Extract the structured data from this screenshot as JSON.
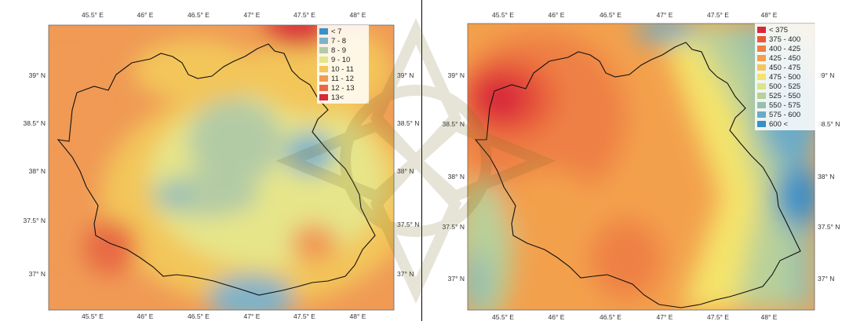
{
  "maps": {
    "left": {
      "legend": [
        {
          "label": "< 7",
          "color": "#3a8fc8"
        },
        {
          "label": "7 - 8",
          "color": "#7fb3c8"
        },
        {
          "label": "8 - 9",
          "color": "#b3cba5"
        },
        {
          "label": "9 - 10",
          "color": "#e6e58a"
        },
        {
          "label": "10 - 11",
          "color": "#f3c65a"
        },
        {
          "label": "11 - 12",
          "color": "#f09a55"
        },
        {
          "label": "12 - 13",
          "color": "#e86a45"
        },
        {
          "label": "13<",
          "color": "#d8283a"
        }
      ],
      "x_ticks": [
        "45.5° E",
        "46° E",
        "46.5° E",
        "47° E",
        "47.5° E",
        "48° E"
      ],
      "y_ticks": [
        "39° N",
        "38.5° N",
        "38° N",
        "37.5° N",
        "37° N"
      ]
    },
    "right": {
      "legend": [
        {
          "label": "< 375",
          "color": "#d8283a"
        },
        {
          "label": "375 - 400",
          "color": "#e8583a"
        },
        {
          "label": "400 - 425",
          "color": "#ee8044"
        },
        {
          "label": "425 - 450",
          "color": "#f3a04c"
        },
        {
          "label": "450 - 475",
          "color": "#f6c65a"
        },
        {
          "label": "475 - 500",
          "color": "#f4e46a"
        },
        {
          "label": "500 - 525",
          "color": "#dde38a"
        },
        {
          "label": "525 - 550",
          "color": "#b8d09a"
        },
        {
          "label": "550 - 575",
          "color": "#97bfae"
        },
        {
          "label": "575 - 600",
          "color": "#6aaac8"
        },
        {
          "label": "600 <",
          "color": "#3a8fc8"
        }
      ],
      "x_ticks": [
        "45.5° E",
        "46° E",
        "46.5° E",
        "47° E",
        "47.5° E",
        "48° E"
      ],
      "y_ticks": [
        "39° N",
        "38.5° N",
        "38° N",
        "37.5° N",
        "37° N"
      ]
    }
  }
}
